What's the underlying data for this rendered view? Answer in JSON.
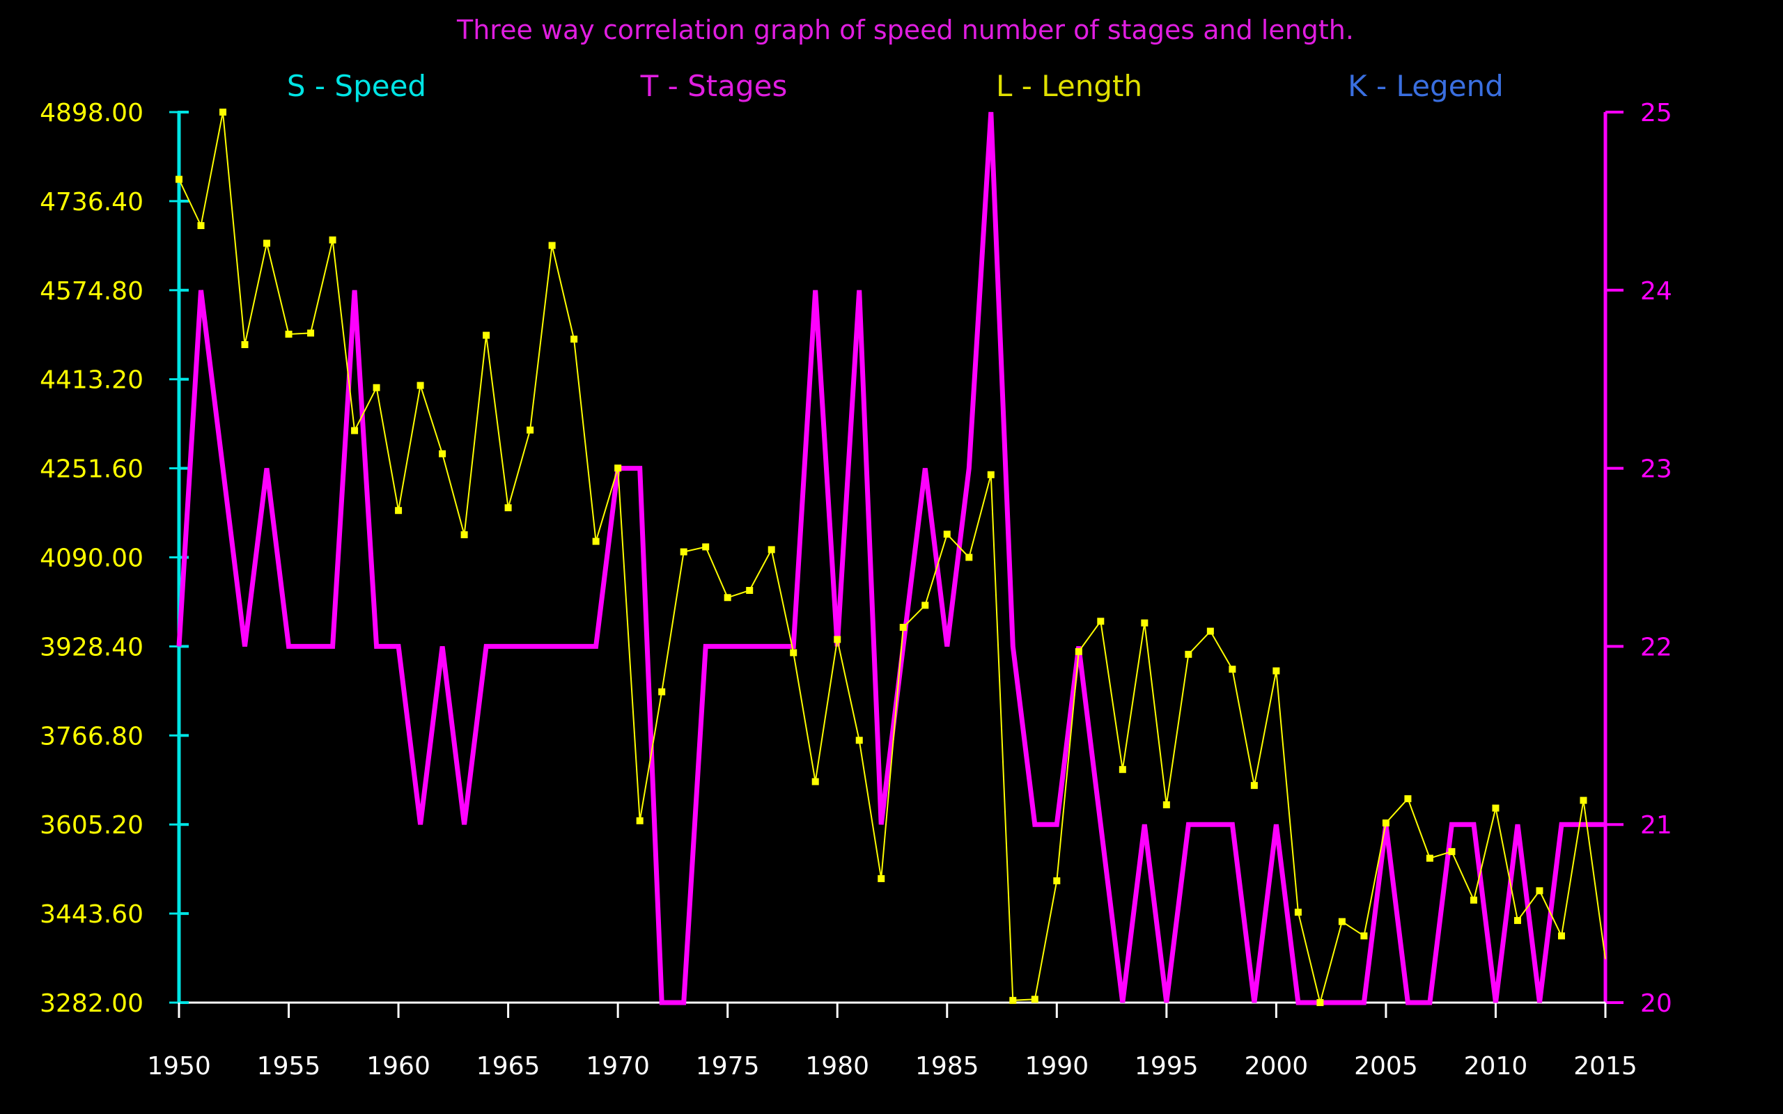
{
  "chart_data": {
    "type": "line",
    "title": "Three way correlation graph of speed number of stages and length.",
    "keys": [
      {
        "label": "S - Speed",
        "color": "#00e5e5"
      },
      {
        "label": "T - Stages",
        "color": "#e01ee0"
      },
      {
        "label": "L - Length",
        "color": "#e0e000"
      },
      {
        "label": "K - Legend",
        "color": "#3a6fe0"
      }
    ],
    "xlim": [
      1950,
      2015
    ],
    "x_ticks": [
      "1950",
      "1955",
      "1960",
      "1965",
      "1970",
      "1975",
      "1980",
      "1985",
      "1990",
      "1995",
      "2000",
      "2005",
      "2010",
      "2015"
    ],
    "y_left": {
      "lim": [
        3282,
        4898
      ],
      "ticks": [
        "3282.00",
        "3443.60",
        "3605.20",
        "3766.80",
        "3928.40",
        "4090.00",
        "4251.60",
        "4413.20",
        "4574.80",
        "4736.40",
        "4898.00"
      ],
      "axis_color": "#00e5e5",
      "tick_color": "#ffff00"
    },
    "y_right": {
      "lim": [
        20,
        25
      ],
      "ticks": [
        "20",
        "21",
        "22",
        "23",
        "24",
        "25"
      ],
      "color": "#ff00ff"
    },
    "series": [
      {
        "name": "Length",
        "axis": "left",
        "color": "#ffff00",
        "x": [
          1950,
          1951,
          1952,
          1953,
          1954,
          1955,
          1956,
          1957,
          1958,
          1959,
          1960,
          1961,
          1962,
          1963,
          1964,
          1965,
          1966,
          1967,
          1968,
          1969,
          1970,
          1971,
          1972,
          1973,
          1974,
          1975,
          1976,
          1977,
          1978,
          1979,
          1980,
          1981,
          1982,
          1983,
          1984,
          1985,
          1986,
          1987,
          1988,
          1989,
          1990,
          1991,
          1992,
          1993,
          1994,
          1995,
          1996,
          1997,
          1998,
          1999,
          2000,
          2001,
          2002,
          2003,
          2004,
          2005,
          2006,
          2007,
          2008,
          2009,
          2010,
          2011,
          2012,
          2013,
          2014,
          2015
        ],
        "values": [
          4776,
          4692,
          4898,
          4476,
          4660,
          4495,
          4497,
          4666,
          4320,
          4398,
          4175,
          4402,
          4278,
          4131,
          4493,
          4180,
          4321,
          4656,
          4486,
          4119,
          4252,
          3612,
          3846,
          4100,
          4109,
          4017,
          4030,
          4104,
          3917,
          3683,
          3941,
          3758,
          3507,
          3963,
          4003,
          4132,
          4090,
          4240,
          3286,
          3288,
          3503,
          3919,
          3974,
          3705,
          3971,
          3641,
          3914,
          3956,
          3887,
          3676,
          3884,
          3446,
          3282,
          3429,
          3403,
          3608,
          3652,
          3544,
          3556,
          3468,
          3635,
          3431,
          3485,
          3403,
          3649,
          3361
        ]
      },
      {
        "name": "Stages",
        "axis": "right",
        "color": "#ff00ff",
        "x": [
          1950,
          1951,
          1952,
          1953,
          1954,
          1955,
          1956,
          1957,
          1958,
          1959,
          1960,
          1961,
          1962,
          1963,
          1964,
          1965,
          1966,
          1967,
          1968,
          1969,
          1970,
          1971,
          1972,
          1973,
          1974,
          1975,
          1976,
          1977,
          1978,
          1979,
          1980,
          1981,
          1982,
          1983,
          1984,
          1985,
          1986,
          1987,
          1988,
          1989,
          1990,
          1991,
          1992,
          1993,
          1994,
          1995,
          1996,
          1997,
          1998,
          1999,
          2000,
          2001,
          2002,
          2003,
          2004,
          2005,
          2006,
          2007,
          2008,
          2009,
          2010,
          2011,
          2012,
          2013,
          2014,
          2015
        ],
        "values": [
          22,
          24,
          23,
          22,
          23,
          22,
          22,
          22,
          24,
          22,
          22,
          21,
          22,
          21,
          22,
          22,
          22,
          22,
          22,
          22,
          23,
          23,
          20,
          20,
          22,
          22,
          22,
          22,
          22,
          24,
          22,
          24,
          21,
          22,
          23,
          22,
          23,
          25,
          22,
          21,
          21,
          22,
          21,
          20,
          21,
          20,
          21,
          21,
          21,
          20,
          21,
          20,
          20,
          20,
          20,
          21,
          20,
          20,
          21,
          21,
          20,
          21,
          20,
          21,
          21,
          21
        ]
      }
    ]
  }
}
